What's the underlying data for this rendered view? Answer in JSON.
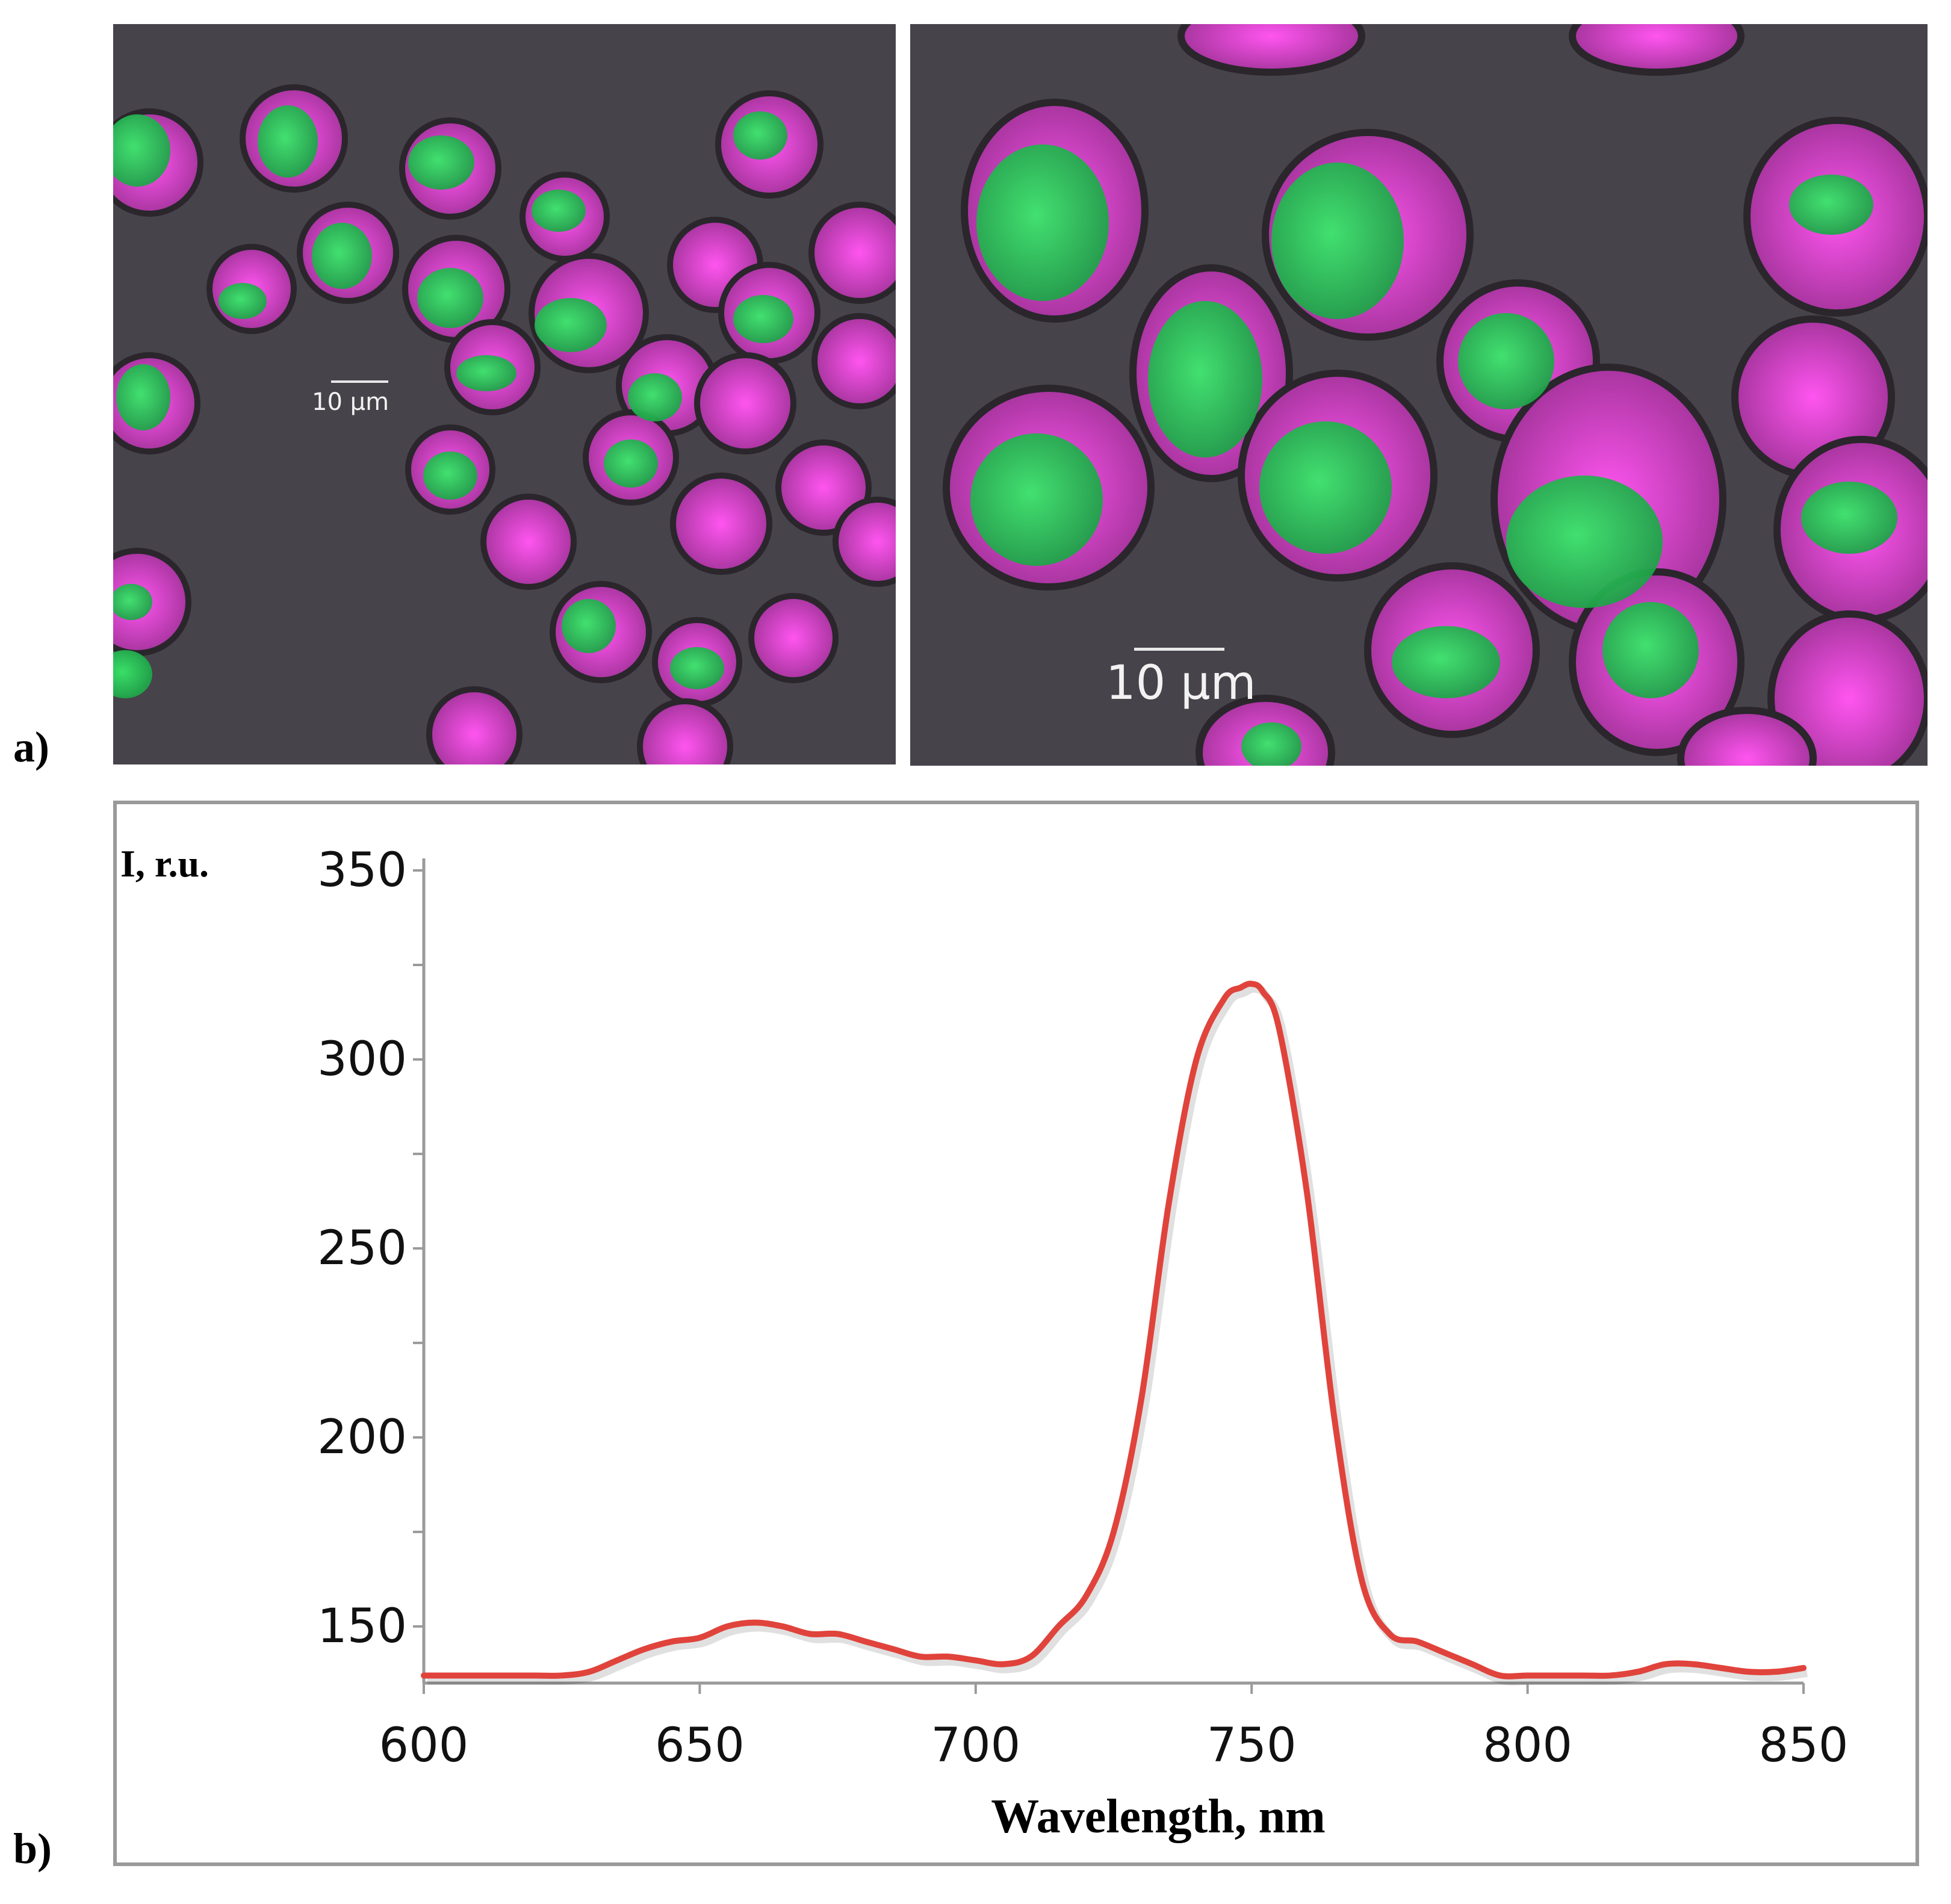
{
  "panels": {
    "a_label": "a)",
    "b_label": "b)"
  },
  "micrographs": {
    "left_scale_text": "10 μm",
    "right_scale_text": "10 μm",
    "colors": {
      "background": "#46434a",
      "green": "#1fd65a",
      "magenta": "#e03ad8"
    }
  },
  "chart_data": {
    "type": "line",
    "title": "",
    "ylabel": "I, r.u.",
    "xlabel": "Wavelength, nm",
    "xlim": [
      600,
      850
    ],
    "ylim": [
      135,
      350
    ],
    "x_ticks": [
      600,
      650,
      700,
      750,
      800,
      850
    ],
    "y_ticks": [
      150,
      200,
      250,
      300,
      350
    ],
    "grid": false,
    "legend": "none",
    "line_color": "#e0433b",
    "series": [
      {
        "x": [
          600,
          610,
          620,
          625,
          630,
          635,
          640,
          645,
          650,
          655,
          660,
          665,
          670,
          675,
          680,
          685,
          690,
          695,
          700,
          705,
          710,
          715,
          720,
          725,
          730,
          735,
          740,
          745,
          748,
          750,
          752,
          755,
          760,
          765,
          770,
          775,
          780,
          785,
          790,
          795,
          800,
          805,
          810,
          815,
          820,
          825,
          830,
          835,
          840,
          845,
          850
        ],
        "y": [
          137,
          137,
          137,
          137,
          138,
          141,
          144,
          146,
          147,
          150,
          151,
          150,
          148,
          148,
          146,
          144,
          142,
          142,
          141,
          140,
          142,
          150,
          158,
          175,
          210,
          262,
          300,
          316,
          319,
          320,
          318,
          308,
          265,
          205,
          162,
          148,
          146,
          143,
          140,
          137,
          137,
          137,
          137,
          137,
          138,
          140,
          140,
          139,
          138,
          138,
          139
        ]
      }
    ]
  }
}
